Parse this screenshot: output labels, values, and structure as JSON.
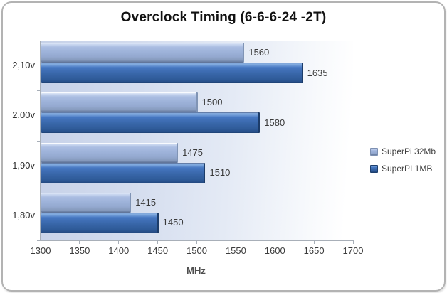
{
  "chart_data": {
    "type": "bar",
    "orientation": "horizontal",
    "title": "Overclock Timing (6-6-6-24 -2T)",
    "categories": [
      "2,10v",
      "2,00v",
      "1,90v",
      "1,80v"
    ],
    "series": [
      {
        "name": "SuperPi 32Mb",
        "values": [
          1560,
          1500,
          1475,
          1415
        ],
        "color": "#9db2d9"
      },
      {
        "name": "SuperPI 1MB",
        "values": [
          1635,
          1580,
          1510,
          1450
        ],
        "color": "#3566ae"
      }
    ],
    "xlabel": "MHz",
    "xlim": [
      1300,
      1700
    ],
    "x_ticks": [
      1300,
      1350,
      1400,
      1450,
      1500,
      1550,
      1600,
      1650,
      1700
    ],
    "grid": false,
    "legend_position": "right",
    "data_labels": true,
    "plot_bg_gradient": [
      "#c6d1e8",
      "#ffffff"
    ],
    "axis_color": "#a8afb8",
    "frame_border_color": "#b3b3b3"
  }
}
